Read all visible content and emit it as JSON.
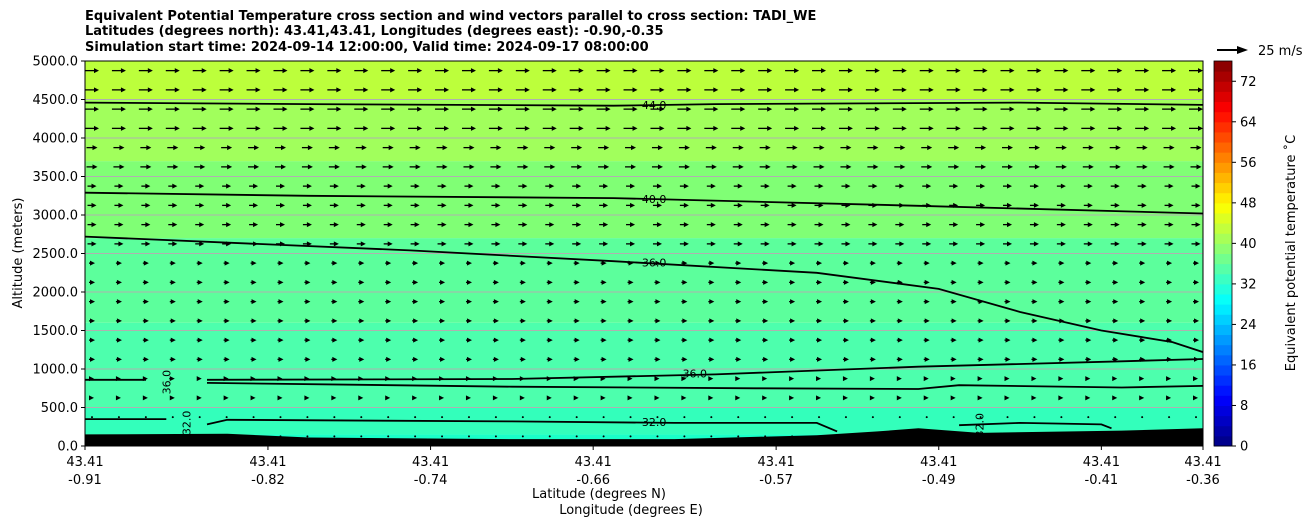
{
  "chart_data": {
    "type": "heatmap",
    "title_lines": [
      "Equivalent Potential Temperature cross section and wind vectors parallel to cross section: TADI_WE",
      "Latitudes (degrees north): 43.41,43.41, Longitudes (degrees east): -0.90,-0.35",
      "Simulation start time: 2024-09-14 12:00:00, Valid time: 2024-09-17 08:00:00"
    ],
    "ylabel": "Altitude (meters)",
    "xlabel_line1": "Latitude (degrees N)",
    "xlabel_line2": "Longitude (degrees E)",
    "ylim": [
      0,
      5000
    ],
    "y_ticks": [
      "0.0",
      "500.0",
      "1000.0",
      "1500.0",
      "2000.0",
      "2500.0",
      "3000.0",
      "3500.0",
      "4000.0",
      "4500.0",
      "5000.0"
    ],
    "x_ticks": [
      {
        "lat": "43.41",
        "lon": "-0.91"
      },
      {
        "lat": "43.41",
        "lon": "-0.82"
      },
      {
        "lat": "43.41",
        "lon": "-0.74"
      },
      {
        "lat": "43.41",
        "lon": "-0.66"
      },
      {
        "lat": "43.41",
        "lon": "-0.57"
      },
      {
        "lat": "43.41",
        "lon": "-0.49"
      },
      {
        "lat": "43.41",
        "lon": "-0.41"
      },
      {
        "lat": "43.41",
        "lon": "-0.36"
      }
    ],
    "grid": true,
    "shading_bands": [
      {
        "from": 0,
        "to": 150,
        "color": "#1affc8"
      },
      {
        "from": 150,
        "to": 500,
        "color": "#33ffbb"
      },
      {
        "from": 500,
        "to": 1600,
        "color": "#4dffad"
      },
      {
        "from": 1600,
        "to": 2700,
        "color": "#5cff9c"
      },
      {
        "from": 2700,
        "to": 3700,
        "color": "#80ff75"
      },
      {
        "from": 3700,
        "to": 4500,
        "color": "#a1ff5c"
      },
      {
        "from": 4500,
        "to": 5000,
        "color": "#bcff3b"
      }
    ],
    "contour_labels": [
      {
        "text": "44.0",
        "x": -0.63,
        "y": 4430
      },
      {
        "text": "40.0",
        "x": -0.63,
        "y": 3210
      },
      {
        "text": "36.0",
        "x": -0.63,
        "y": 2380
      },
      {
        "text": "36.0",
        "x": -0.61,
        "y": 940
      },
      {
        "text": "36.0",
        "x": -0.87,
        "y": 830,
        "vertical": true
      },
      {
        "text": "32.0",
        "x": -0.63,
        "y": 310
      },
      {
        "text": "32.0",
        "x": -0.86,
        "y": 300,
        "vertical": true
      },
      {
        "text": "32.0",
        "x": -0.47,
        "y": 270,
        "vertical": true
      }
    ],
    "terrain_color": "#000000",
    "colorbar": {
      "label": "Equivalent potential temperature ˚C",
      "range": [
        0,
        76
      ],
      "ticks": [
        "0",
        "8",
        "16",
        "24",
        "32",
        "40",
        "48",
        "56",
        "64",
        "72"
      ],
      "colormap": "jet"
    },
    "wind_key": {
      "label": "25 m/s",
      "speed": 25
    },
    "wind_vectors": "rightward arrows; length increasing with altitude (near-calm below 1000 m, strongest 4000–5000 m)"
  }
}
